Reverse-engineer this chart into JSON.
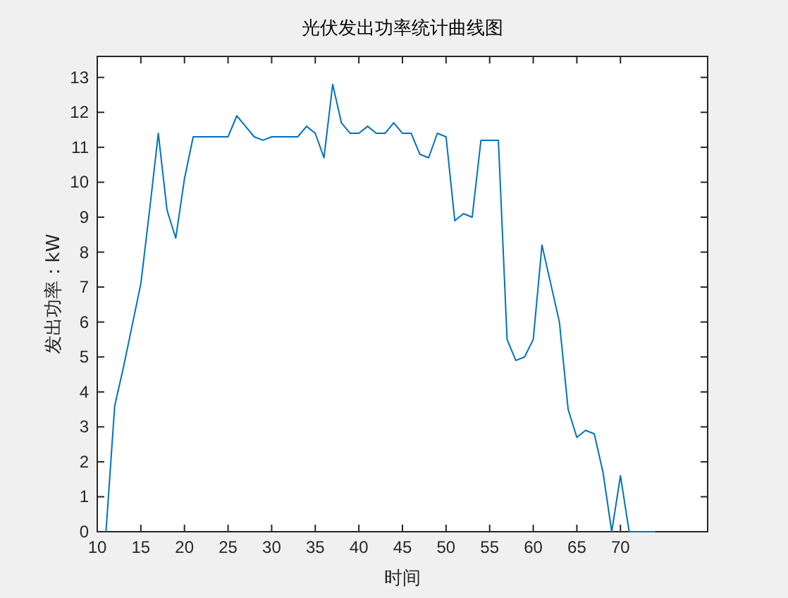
{
  "chart_data": {
    "type": "line",
    "title": "光伏发出功率统计曲线图",
    "xlabel": "时间",
    "ylabel": "发出功率：kW",
    "x": [
      11,
      12,
      13,
      14,
      15,
      16,
      17,
      18,
      19,
      20,
      21,
      22,
      23,
      24,
      25,
      26,
      27,
      28,
      29,
      30,
      31,
      32,
      33,
      34,
      35,
      36,
      37,
      38,
      39,
      40,
      41,
      42,
      43,
      44,
      45,
      46,
      47,
      48,
      49,
      50,
      51,
      52,
      53,
      54,
      55,
      56,
      57,
      58,
      59,
      60,
      61,
      62,
      63,
      64,
      65,
      66,
      67,
      68,
      69,
      70,
      71,
      72,
      73,
      74
    ],
    "series": [
      {
        "color": "#0072bd",
        "values": [
          0,
          3.6,
          4.7,
          5.9,
          7.1,
          9.2,
          11.4,
          9.2,
          8.4,
          10.1,
          11.3,
          11.3,
          11.3,
          11.3,
          11.3,
          11.9,
          11.6,
          11.3,
          11.2,
          11.3,
          11.3,
          11.3,
          11.3,
          11.6,
          11.4,
          10.7,
          12.8,
          11.7,
          11.4,
          11.4,
          11.6,
          11.4,
          11.4,
          11.7,
          11.4,
          11.4,
          10.8,
          10.7,
          11.4,
          11.3,
          8.9,
          9.1,
          9.0,
          11.2,
          11.2,
          11.2,
          5.5,
          4.9,
          5.0,
          5.5,
          8.2,
          7.1,
          6.0,
          3.5,
          2.7,
          2.9,
          2.8,
          1.7,
          0,
          1.6,
          0,
          0,
          0,
          0
        ]
      }
    ],
    "xlim": [
      10,
      80
    ],
    "xticks": [
      10,
      15,
      20,
      25,
      30,
      35,
      40,
      45,
      50,
      55,
      60,
      65,
      70
    ],
    "ylim": [
      0,
      13.6
    ],
    "yticks": [
      0,
      1,
      2,
      3,
      4,
      5,
      6,
      7,
      8,
      9,
      10,
      11,
      12,
      13
    ],
    "grid": false,
    "marker": "none",
    "line_style": "solid"
  }
}
